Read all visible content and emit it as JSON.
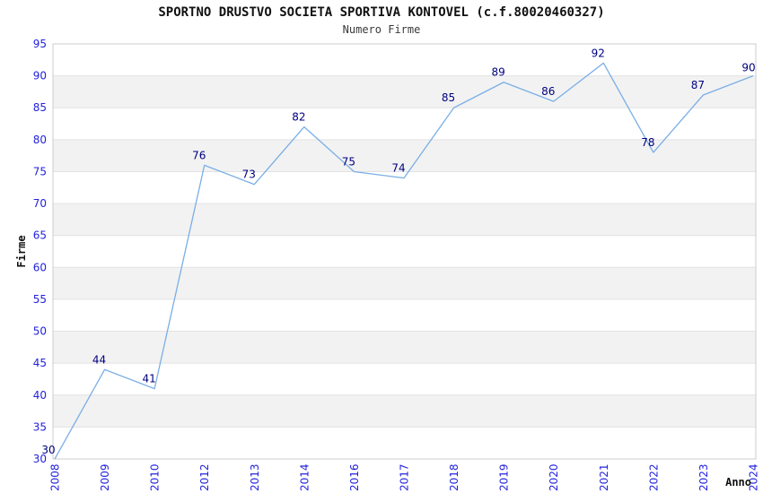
{
  "chart_data": {
    "type": "line",
    "title": "SPORTNO DRUSTVO SOCIETA SPORTIVA KONTOVEL (c.f.80020460327)",
    "subtitle": "Numero Firme",
    "xlabel": "Anno",
    "ylabel": "Firme",
    "categories": [
      "2008",
      "2009",
      "2010",
      "2012",
      "2013",
      "2014",
      "2016",
      "2017",
      "2018",
      "2019",
      "2020",
      "2021",
      "2022",
      "2023",
      "2024"
    ],
    "values": [
      30,
      44,
      41,
      76,
      73,
      82,
      75,
      74,
      85,
      89,
      86,
      92,
      78,
      87,
      90
    ],
    "ylim": [
      30,
      95
    ],
    "ytick_step": 5,
    "grid": "horizontal",
    "legend": "none",
    "colors": {
      "line": "#7AAEE6",
      "tick_label": "#2222DD",
      "data_label": "#000080",
      "axis_title": "#111111",
      "band_fill": "#F2F2F2",
      "band_alt_fill": "#FFFFFF",
      "grid_line": "#E2E2E2",
      "plot_border": "#CCCCCC",
      "background": "#FFFFFF"
    }
  }
}
